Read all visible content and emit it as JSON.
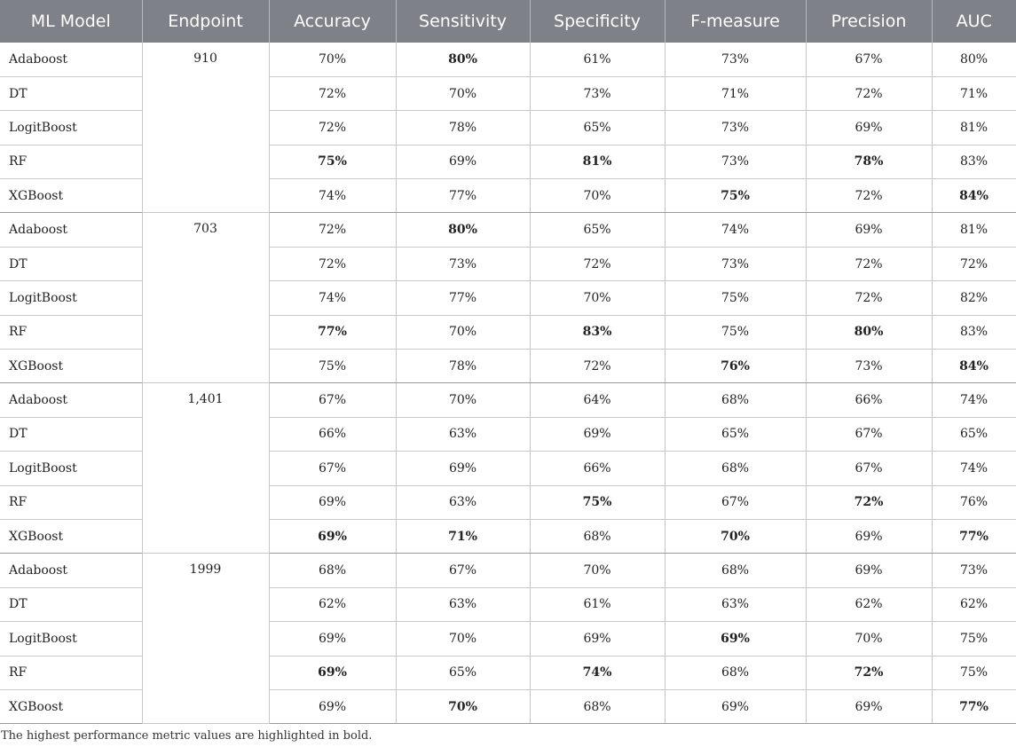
{
  "table": {
    "headers": [
      "ML Model",
      "Endpoint",
      "Accuracy",
      "Sensitivity",
      "Specificity",
      "F-measure",
      "Precision",
      "AUC"
    ],
    "groups": [
      {
        "endpoint": "910",
        "rows": [
          {
            "model": "Adaboost",
            "values": [
              "70%",
              "80%",
              "61%",
              "73%",
              "67%",
              "80%"
            ],
            "bold": [
              false,
              true,
              false,
              false,
              false,
              false
            ]
          },
          {
            "model": "DT",
            "values": [
              "72%",
              "70%",
              "73%",
              "71%",
              "72%",
              "71%"
            ],
            "bold": [
              false,
              false,
              false,
              false,
              false,
              false
            ]
          },
          {
            "model": "LogitBoost",
            "values": [
              "72%",
              "78%",
              "65%",
              "73%",
              "69%",
              "81%"
            ],
            "bold": [
              false,
              false,
              false,
              false,
              false,
              false
            ]
          },
          {
            "model": "RF",
            "values": [
              "75%",
              "69%",
              "81%",
              "73%",
              "78%",
              "83%"
            ],
            "bold": [
              true,
              false,
              true,
              false,
              true,
              false
            ]
          },
          {
            "model": "XGBoost",
            "values": [
              "74%",
              "77%",
              "70%",
              "75%",
              "72%",
              "84%"
            ],
            "bold": [
              false,
              false,
              false,
              true,
              false,
              true
            ]
          }
        ]
      },
      {
        "endpoint": "703",
        "rows": [
          {
            "model": "Adaboost",
            "values": [
              "72%",
              "80%",
              "65%",
              "74%",
              "69%",
              "81%"
            ],
            "bold": [
              false,
              true,
              false,
              false,
              false,
              false
            ]
          },
          {
            "model": "DT",
            "values": [
              "72%",
              "73%",
              "72%",
              "73%",
              "72%",
              "72%"
            ],
            "bold": [
              false,
              false,
              false,
              false,
              false,
              false
            ]
          },
          {
            "model": "LogitBoost",
            "values": [
              "74%",
              "77%",
              "70%",
              "75%",
              "72%",
              "82%"
            ],
            "bold": [
              false,
              false,
              false,
              false,
              false,
              false
            ]
          },
          {
            "model": "RF",
            "values": [
              "77%",
              "70%",
              "83%",
              "75%",
              "80%",
              "83%"
            ],
            "bold": [
              true,
              false,
              true,
              false,
              true,
              false
            ]
          },
          {
            "model": "XGBoost",
            "values": [
              "75%",
              "78%",
              "72%",
              "76%",
              "73%",
              "84%"
            ],
            "bold": [
              false,
              false,
              false,
              true,
              false,
              true
            ]
          }
        ]
      },
      {
        "endpoint": "1,401",
        "rows": [
          {
            "model": "Adaboost",
            "values": [
              "67%",
              "70%",
              "64%",
              "68%",
              "66%",
              "74%"
            ],
            "bold": [
              false,
              false,
              false,
              false,
              false,
              false
            ]
          },
          {
            "model": "DT",
            "values": [
              "66%",
              "63%",
              "69%",
              "65%",
              "67%",
              "65%"
            ],
            "bold": [
              false,
              false,
              false,
              false,
              false,
              false
            ]
          },
          {
            "model": "LogitBoost",
            "values": [
              "67%",
              "69%",
              "66%",
              "68%",
              "67%",
              "74%"
            ],
            "bold": [
              false,
              false,
              false,
              false,
              false,
              false
            ]
          },
          {
            "model": "RF",
            "values": [
              "69%",
              "63%",
              "75%",
              "67%",
              "72%",
              "76%"
            ],
            "bold": [
              false,
              false,
              true,
              false,
              true,
              false
            ]
          },
          {
            "model": "XGBoost",
            "values": [
              "69%",
              "71%",
              "68%",
              "70%",
              "69%",
              "77%"
            ],
            "bold": [
              true,
              true,
              false,
              true,
              false,
              true
            ]
          }
        ]
      },
      {
        "endpoint": "1999",
        "rows": [
          {
            "model": "Adaboost",
            "values": [
              "68%",
              "67%",
              "70%",
              "68%",
              "69%",
              "73%"
            ],
            "bold": [
              false,
              false,
              false,
              false,
              false,
              false
            ]
          },
          {
            "model": "DT",
            "values": [
              "62%",
              "63%",
              "61%",
              "63%",
              "62%",
              "62%"
            ],
            "bold": [
              false,
              false,
              false,
              false,
              false,
              false
            ]
          },
          {
            "model": "LogitBoost",
            "values": [
              "69%",
              "70%",
              "69%",
              "69%",
              "70%",
              "75%"
            ],
            "bold": [
              false,
              false,
              false,
              true,
              false,
              false
            ]
          },
          {
            "model": "RF",
            "values": [
              "69%",
              "65%",
              "74%",
              "68%",
              "72%",
              "75%"
            ],
            "bold": [
              true,
              false,
              true,
              false,
              true,
              false
            ]
          },
          {
            "model": "XGBoost",
            "values": [
              "69%",
              "70%",
              "68%",
              "69%",
              "69%",
              "77%"
            ],
            "bold": [
              false,
              true,
              false,
              false,
              false,
              true
            ]
          }
        ]
      }
    ]
  },
  "footnote": "The highest performance metric values are highlighted in bold.",
  "colors": {
    "header_bg": "#7e8187",
    "header_text": "#ffffff",
    "grid": "#c7c7c7"
  }
}
